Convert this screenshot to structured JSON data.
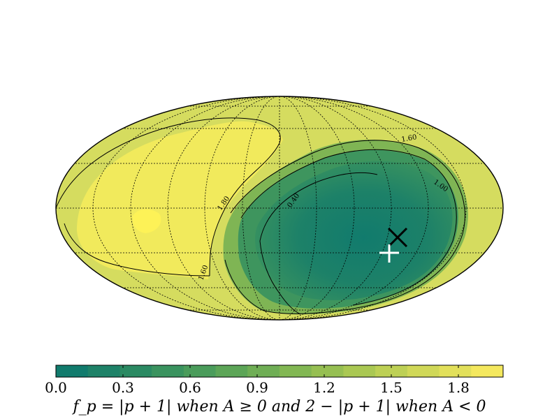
{
  "chart_data": {
    "type": "heatmap",
    "projection": "mollweide",
    "grid": true,
    "colorbar": {
      "position": "bottom",
      "range": [
        0.0,
        2.0
      ],
      "ticks": [
        "0.0",
        "0.3",
        "0.6",
        "0.9",
        "1.2",
        "1.5",
        "1.8"
      ],
      "tick_values": [
        0.0,
        0.3,
        0.6,
        0.9,
        1.2,
        1.5,
        1.8
      ],
      "levels": 14,
      "colors": [
        "#117b6d",
        "#1e8268",
        "#2b8a63",
        "#3a935f",
        "#4a9c5b",
        "#5ca557",
        "#6fae55",
        "#82b753",
        "#96bf52",
        "#aac853",
        "#bdd055",
        "#d0d858",
        "#e2e05b",
        "#f4e85e",
        "#fdf057"
      ],
      "caption": "f_p = |p + 1| when A ≥ 0 and 2 − |p + 1| when A < 0"
    },
    "contour_labels": [
      "1.60",
      "1.00",
      "1.80",
      "0.40",
      "1.60"
    ],
    "markers": [
      {
        "symbol": "x",
        "color": "#000000",
        "lon_deg": -67,
        "lat_deg": -15
      },
      {
        "symbol": "+",
        "color": "#ffffff",
        "lon_deg": -62,
        "lat_deg": -23
      }
    ]
  }
}
